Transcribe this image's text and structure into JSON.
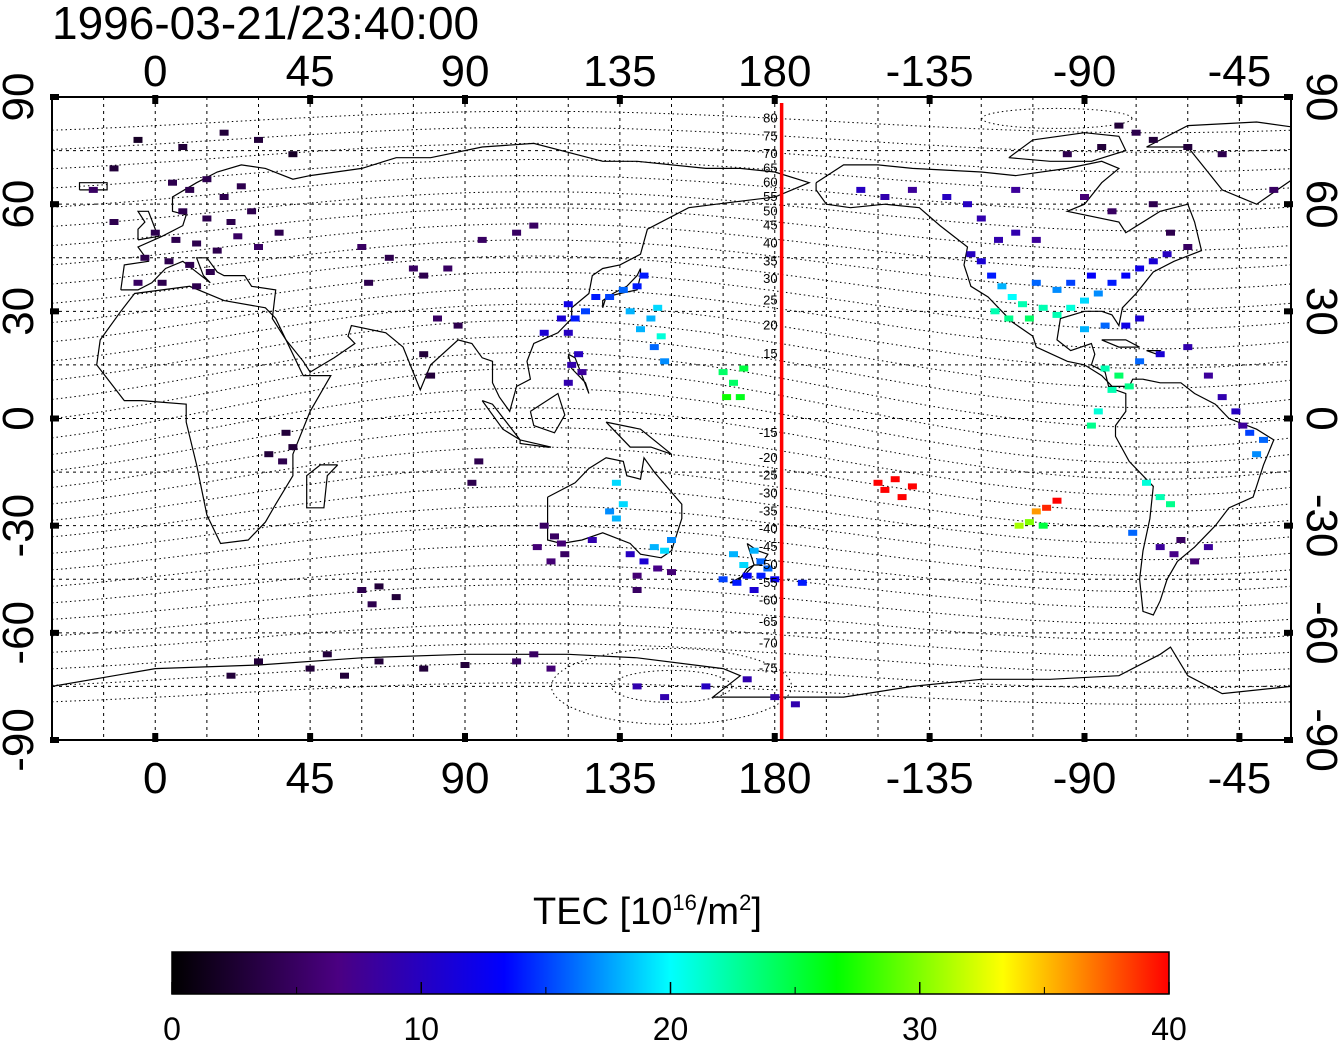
{
  "title": "1996-03-21/23:40:00",
  "map": {
    "lon_range": [
      -30,
      330
    ],
    "lat_range": [
      -90,
      90
    ],
    "lon_ticks": [
      0,
      45,
      90,
      135,
      180,
      225,
      270,
      315
    ],
    "lon_tick_labels": [
      "0",
      "45",
      "90",
      "135",
      "180",
      "-135",
      "-90",
      "-45"
    ],
    "lat_ticks": [
      90,
      60,
      30,
      0,
      -30,
      -60,
      -90
    ],
    "lat_tick_labels": [
      "90",
      "60",
      "30",
      "0",
      "-30",
      "-60",
      "-90"
    ],
    "grid": true,
    "terminator_lon": 182,
    "terminator_color": "#ff0000",
    "contour_labels": [
      {
        "label": "80",
        "lat": 84
      },
      {
        "label": "75",
        "lat": 79
      },
      {
        "label": "70",
        "lat": 74
      },
      {
        "label": "65",
        "lat": 70
      },
      {
        "label": "60",
        "lat": 66
      },
      {
        "label": "55",
        "lat": 62
      },
      {
        "label": "50",
        "lat": 58
      },
      {
        "label": "45",
        "lat": 54
      },
      {
        "label": "40",
        "lat": 49
      },
      {
        "label": "35",
        "lat": 44
      },
      {
        "label": "30",
        "lat": 39
      },
      {
        "label": "25",
        "lat": 33
      },
      {
        "label": "20",
        "lat": 26
      },
      {
        "label": "15",
        "lat": 18
      },
      {
        "label": "-15",
        "lat": -4
      },
      {
        "label": "-20",
        "lat": -11
      },
      {
        "label": "-25",
        "lat": -16
      },
      {
        "label": "-30",
        "lat": -21
      },
      {
        "label": "-35",
        "lat": -26
      },
      {
        "label": "-40",
        "lat": -31
      },
      {
        "label": "-45",
        "lat": -36
      },
      {
        "label": "-50",
        "lat": -41
      },
      {
        "label": "-55",
        "lat": -46
      },
      {
        "label": "-60",
        "lat": -51
      },
      {
        "label": "-65",
        "lat": -57
      },
      {
        "label": "-70",
        "lat": -63
      },
      {
        "label": "-75",
        "lat": -70
      }
    ]
  },
  "colorbar": {
    "title_main": "TEC  [10",
    "title_exp1": "16",
    "title_mid": "/m",
    "title_exp2": "2",
    "title_end": "]",
    "min": 0,
    "max": 40,
    "ticks": [
      0,
      10,
      20,
      30,
      40
    ],
    "tick_labels": [
      "0",
      "10",
      "20",
      "30",
      "40"
    ],
    "stops": [
      "#000000",
      "#4b0082",
      "#0000ff",
      "#00ffff",
      "#00ff00",
      "#ffff00",
      "#ff0000"
    ]
  },
  "tec_points": [
    {
      "lon": 5,
      "lat": 66,
      "tec": 4
    },
    {
      "lon": 10,
      "lat": 64,
      "tec": 4
    },
    {
      "lon": 15,
      "lat": 67,
      "tec": 4
    },
    {
      "lon": 20,
      "lat": 62,
      "tec": 4
    },
    {
      "lon": 25,
      "lat": 65,
      "tec": 4
    },
    {
      "lon": 8,
      "lat": 58,
      "tec": 4
    },
    {
      "lon": 15,
      "lat": 56,
      "tec": 4
    },
    {
      "lon": 22,
      "lat": 55,
      "tec": 4
    },
    {
      "lon": 28,
      "lat": 58,
      "tec": 4
    },
    {
      "lon": 0,
      "lat": 52,
      "tec": 4
    },
    {
      "lon": 6,
      "lat": 50,
      "tec": 4
    },
    {
      "lon": 12,
      "lat": 49,
      "tec": 4
    },
    {
      "lon": 18,
      "lat": 47,
      "tec": 4
    },
    {
      "lon": 24,
      "lat": 51,
      "tec": 5
    },
    {
      "lon": -3,
      "lat": 45,
      "tec": 4
    },
    {
      "lon": 4,
      "lat": 44,
      "tec": 4
    },
    {
      "lon": 10,
      "lat": 43,
      "tec": 4
    },
    {
      "lon": 16,
      "lat": 41,
      "tec": 4
    },
    {
      "lon": -5,
      "lat": 38,
      "tec": 5
    },
    {
      "lon": 2,
      "lat": 38,
      "tec": 4
    },
    {
      "lon": 12,
      "lat": 37,
      "tec": 4
    },
    {
      "lon": 30,
      "lat": 48,
      "tec": 5
    },
    {
      "lon": 36,
      "lat": 52,
      "tec": 4
    },
    {
      "lon": -12,
      "lat": 55,
      "tec": 4
    },
    {
      "lon": -18,
      "lat": 64,
      "tec": 5
    },
    {
      "lon": 20,
      "lat": 80,
      "tec": 3
    },
    {
      "lon": 30,
      "lat": 78,
      "tec": 3
    },
    {
      "lon": -5,
      "lat": 78,
      "tec": 2
    },
    {
      "lon": 8,
      "lat": 76,
      "tec": 3
    },
    {
      "lon": 40,
      "lat": 74,
      "tec": 2
    },
    {
      "lon": -12,
      "lat": 70,
      "tec": 3
    },
    {
      "lon": 60,
      "lat": 48,
      "tec": 5
    },
    {
      "lon": 68,
      "lat": 45,
      "tec": 4
    },
    {
      "lon": 75,
      "lat": 42,
      "tec": 5
    },
    {
      "lon": 62,
      "lat": 38,
      "tec": 4
    },
    {
      "lon": 78,
      "lat": 40,
      "tec": 4
    },
    {
      "lon": 85,
      "lat": 42,
      "tec": 5
    },
    {
      "lon": 95,
      "lat": 50,
      "tec": 5
    },
    {
      "lon": 105,
      "lat": 52,
      "tec": 5
    },
    {
      "lon": 110,
      "lat": 54,
      "tec": 5
    },
    {
      "lon": 82,
      "lat": 28,
      "tec": 5
    },
    {
      "lon": 88,
      "lat": 26,
      "tec": 4
    },
    {
      "lon": 78,
      "lat": 18,
      "tec": 3
    },
    {
      "lon": 80,
      "lat": 12,
      "tec": 3
    },
    {
      "lon": 38,
      "lat": -4,
      "tec": 3
    },
    {
      "lon": 40,
      "lat": -8,
      "tec": 3
    },
    {
      "lon": 37,
      "lat": -12,
      "tec": 4
    },
    {
      "lon": 33,
      "lat": -10,
      "tec": 3
    },
    {
      "lon": 94,
      "lat": -12,
      "tec": 4
    },
    {
      "lon": 92,
      "lat": -18,
      "tec": 4
    },
    {
      "lon": 60,
      "lat": -48,
      "tec": 4
    },
    {
      "lon": 65,
      "lat": -47,
      "tec": 3
    },
    {
      "lon": 70,
      "lat": -50,
      "tec": 3
    },
    {
      "lon": 63,
      "lat": -52,
      "tec": 4
    },
    {
      "lon": 113,
      "lat": -30,
      "tec": 5
    },
    {
      "lon": 116,
      "lat": -33,
      "tec": 5
    },
    {
      "lon": 118,
      "lat": -35,
      "tec": 6
    },
    {
      "lon": 111,
      "lat": -36,
      "tec": 6
    },
    {
      "lon": 119,
      "lat": -38,
      "tec": 5
    },
    {
      "lon": 115,
      "lat": -40,
      "tec": 6
    },
    {
      "lon": 127,
      "lat": -34,
      "tec": 9
    },
    {
      "lon": 132,
      "lat": -26,
      "tec": 17
    },
    {
      "lon": 134,
      "lat": -28,
      "tec": 18
    },
    {
      "lon": 136,
      "lat": -24,
      "tec": 19
    },
    {
      "lon": 134,
      "lat": -18,
      "tec": 19
    },
    {
      "lon": 138,
      "lat": -38,
      "tec": 10
    },
    {
      "lon": 142,
      "lat": -40,
      "tec": 11
    },
    {
      "lon": 145,
      "lat": -36,
      "tec": 18
    },
    {
      "lon": 148,
      "lat": -37,
      "tec": 19
    },
    {
      "lon": 150,
      "lat": -34,
      "tec": 17
    },
    {
      "lon": 146,
      "lat": -42,
      "tec": 7
    },
    {
      "lon": 150,
      "lat": -43,
      "tec": 6
    },
    {
      "lon": 140,
      "lat": -44,
      "tec": 6
    },
    {
      "lon": 140,
      "lat": -48,
      "tec": 5
    },
    {
      "lon": 168,
      "lat": -38,
      "tec": 18
    },
    {
      "lon": 171,
      "lat": -41,
      "tec": 19
    },
    {
      "lon": 174,
      "lat": -37,
      "tec": 18
    },
    {
      "lon": 176,
      "lat": -40,
      "tec": 16
    },
    {
      "lon": 172,
      "lat": -44,
      "tec": 13
    },
    {
      "lon": 169,
      "lat": -46,
      "tec": 14
    },
    {
      "lon": 165,
      "lat": -45,
      "tec": 15
    },
    {
      "lon": 176,
      "lat": -44,
      "tec": 14
    },
    {
      "lon": 178,
      "lat": -42,
      "tec": 16
    },
    {
      "lon": 180,
      "lat": -45,
      "tec": 13
    },
    {
      "lon": 174,
      "lat": -48,
      "tec": 11
    },
    {
      "lon": 188,
      "lat": -46,
      "tec": 14
    },
    {
      "lon": 120,
      "lat": 24,
      "tec": 10
    },
    {
      "lon": 122,
      "lat": 28,
      "tec": 14
    },
    {
      "lon": 125,
      "lat": 30,
      "tec": 15
    },
    {
      "lon": 128,
      "lat": 34,
      "tec": 14
    },
    {
      "lon": 132,
      "lat": 34,
      "tec": 15
    },
    {
      "lon": 136,
      "lat": 36,
      "tec": 16
    },
    {
      "lon": 140,
      "lat": 37,
      "tec": 14
    },
    {
      "lon": 142,
      "lat": 40,
      "tec": 14
    },
    {
      "lon": 138,
      "lat": 30,
      "tec": 18
    },
    {
      "lon": 144,
      "lat": 28,
      "tec": 18
    },
    {
      "lon": 146,
      "lat": 31,
      "tec": 19
    },
    {
      "lon": 141,
      "lat": 25,
      "tec": 18
    },
    {
      "lon": 147,
      "lat": 23,
      "tec": 21
    },
    {
      "lon": 148,
      "lat": 16,
      "tec": 17
    },
    {
      "lon": 145,
      "lat": 20,
      "tec": 16
    },
    {
      "lon": 120,
      "lat": 32,
      "tec": 12
    },
    {
      "lon": 118,
      "lat": 28,
      "tec": 11
    },
    {
      "lon": 121,
      "lat": 15,
      "tec": 9
    },
    {
      "lon": 124,
      "lat": 13,
      "tec": 8
    },
    {
      "lon": 123,
      "lat": 18,
      "tec": 10
    },
    {
      "lon": 120,
      "lat": 10,
      "tec": 9
    },
    {
      "lon": 113,
      "lat": 24,
      "tec": 11
    },
    {
      "lon": 165,
      "lat": 13,
      "tec": 24
    },
    {
      "lon": 168,
      "lat": 10,
      "tec": 24
    },
    {
      "lon": 170,
      "lat": 6,
      "tec": 26
    },
    {
      "lon": 166,
      "lat": 6,
      "tec": 27
    },
    {
      "lon": 171,
      "lat": 14,
      "tec": 25
    },
    {
      "lon": 210,
      "lat": -18,
      "tec": 40
    },
    {
      "lon": 212,
      "lat": -20,
      "tec": 40
    },
    {
      "lon": 215,
      "lat": -17,
      "tec": 40
    },
    {
      "lon": 217,
      "lat": -22,
      "tec": 40
    },
    {
      "lon": 220,
      "lat": -19,
      "tec": 40
    },
    {
      "lon": 256,
      "lat": -26,
      "tec": 36
    },
    {
      "lon": 259,
      "lat": -25,
      "tec": 39
    },
    {
      "lon": 262,
      "lat": -23,
      "tec": 40
    },
    {
      "lon": 254,
      "lat": -29,
      "tec": 30
    },
    {
      "lon": 258,
      "lat": -30,
      "tec": 25
    },
    {
      "lon": 251,
      "lat": -30,
      "tec": 31
    },
    {
      "lon": 237,
      "lat": 46,
      "tec": 10
    },
    {
      "lon": 240,
      "lat": 44,
      "tec": 11
    },
    {
      "lon": 243,
      "lat": 40,
      "tec": 14
    },
    {
      "lon": 246,
      "lat": 37,
      "tec": 18
    },
    {
      "lon": 249,
      "lat": 34,
      "tec": 20
    },
    {
      "lon": 252,
      "lat": 32,
      "tec": 22
    },
    {
      "lon": 244,
      "lat": 30,
      "tec": 22
    },
    {
      "lon": 248,
      "lat": 28,
      "tec": 23
    },
    {
      "lon": 254,
      "lat": 28,
      "tec": 24
    },
    {
      "lon": 258,
      "lat": 31,
      "tec": 22
    },
    {
      "lon": 262,
      "lat": 29,
      "tec": 22
    },
    {
      "lon": 266,
      "lat": 31,
      "tec": 21
    },
    {
      "lon": 270,
      "lat": 33,
      "tec": 19
    },
    {
      "lon": 274,
      "lat": 35,
      "tec": 17
    },
    {
      "lon": 278,
      "lat": 38,
      "tec": 14
    },
    {
      "lon": 282,
      "lat": 40,
      "tec": 13
    },
    {
      "lon": 286,
      "lat": 42,
      "tec": 12
    },
    {
      "lon": 290,
      "lat": 44,
      "tec": 11
    },
    {
      "lon": 294,
      "lat": 46,
      "tec": 10
    },
    {
      "lon": 256,
      "lat": 38,
      "tec": 16
    },
    {
      "lon": 262,
      "lat": 36,
      "tec": 17
    },
    {
      "lon": 266,
      "lat": 38,
      "tec": 15
    },
    {
      "lon": 272,
      "lat": 40,
      "tec": 13
    },
    {
      "lon": 245,
      "lat": 50,
      "tec": 9
    },
    {
      "lon": 250,
      "lat": 52,
      "tec": 9
    },
    {
      "lon": 256,
      "lat": 50,
      "tec": 8
    },
    {
      "lon": 240,
      "lat": 56,
      "tec": 9
    },
    {
      "lon": 236,
      "lat": 60,
      "tec": 10
    },
    {
      "lon": 230,
      "lat": 62,
      "tec": 10
    },
    {
      "lon": 212,
      "lat": 62,
      "tec": 9
    },
    {
      "lon": 205,
      "lat": 64,
      "tec": 10
    },
    {
      "lon": 220,
      "lat": 64,
      "tec": 8
    },
    {
      "lon": 250,
      "lat": 64,
      "tec": 8
    },
    {
      "lon": 270,
      "lat": 62,
      "tec": 6
    },
    {
      "lon": 278,
      "lat": 58,
      "tec": 5
    },
    {
      "lon": 290,
      "lat": 60,
      "tec": 4
    },
    {
      "lon": 295,
      "lat": 52,
      "tec": 4
    },
    {
      "lon": 300,
      "lat": 48,
      "tec": 5
    },
    {
      "lon": 270,
      "lat": 25,
      "tec": 18
    },
    {
      "lon": 276,
      "lat": 26,
      "tec": 16
    },
    {
      "lon": 282,
      "lat": 26,
      "tec": 12
    },
    {
      "lon": 286,
      "lat": 28,
      "tec": 11
    },
    {
      "lon": 276,
      "lat": 14,
      "tec": 22
    },
    {
      "lon": 280,
      "lat": 12,
      "tec": 24
    },
    {
      "lon": 283,
      "lat": 9,
      "tec": 23
    },
    {
      "lon": 278,
      "lat": 8,
      "tec": 22
    },
    {
      "lon": 274,
      "lat": 2,
      "tec": 21
    },
    {
      "lon": 272,
      "lat": -2,
      "tec": 23
    },
    {
      "lon": 286,
      "lat": 16,
      "tec": 16
    },
    {
      "lon": 292,
      "lat": 18,
      "tec": 11
    },
    {
      "lon": 300,
      "lat": 20,
      "tec": 9
    },
    {
      "lon": 306,
      "lat": 12,
      "tec": 8
    },
    {
      "lon": 310,
      "lat": 6,
      "tec": 9
    },
    {
      "lon": 314,
      "lat": 2,
      "tec": 10
    },
    {
      "lon": 318,
      "lat": -4,
      "tec": 15
    },
    {
      "lon": 322,
      "lat": -6,
      "tec": 16
    },
    {
      "lon": 320,
      "lat": -10,
      "tec": 17
    },
    {
      "lon": 316,
      "lat": -2,
      "tec": 8
    },
    {
      "lon": 288,
      "lat": -18,
      "tec": 21
    },
    {
      "lon": 292,
      "lat": -22,
      "tec": 22
    },
    {
      "lon": 295,
      "lat": -24,
      "tec": 23
    },
    {
      "lon": 284,
      "lat": -32,
      "tec": 16
    },
    {
      "lon": 292,
      "lat": -36,
      "tec": 8
    },
    {
      "lon": 296,
      "lat": -38,
      "tec": 7
    },
    {
      "lon": 302,
      "lat": -40,
      "tec": 6
    },
    {
      "lon": 306,
      "lat": -36,
      "tec": 8
    },
    {
      "lon": 298,
      "lat": -34,
      "tec": 5
    },
    {
      "lon": 285,
      "lat": 80,
      "tec": 4
    },
    {
      "lon": 290,
      "lat": 78,
      "tec": 3
    },
    {
      "lon": 275,
      "lat": 76,
      "tec": 3
    },
    {
      "lon": 300,
      "lat": 76,
      "tec": 3
    },
    {
      "lon": 265,
      "lat": 74,
      "tec": 4
    },
    {
      "lon": 310,
      "lat": 74,
      "tec": 4
    },
    {
      "lon": 280,
      "lat": 82,
      "tec": 3
    },
    {
      "lon": 325,
      "lat": 64,
      "tec": 5
    },
    {
      "lon": 110,
      "lat": -66,
      "tec": 5
    },
    {
      "lon": 115,
      "lat": -70,
      "tec": 6
    },
    {
      "lon": 105,
      "lat": -68,
      "tec": 5
    },
    {
      "lon": 30,
      "lat": -68,
      "tec": 3
    },
    {
      "lon": 22,
      "lat": -72,
      "tec": 3
    },
    {
      "lon": 45,
      "lat": -70,
      "tec": 3
    },
    {
      "lon": 55,
      "lat": -72,
      "tec": 3
    },
    {
      "lon": 65,
      "lat": -68,
      "tec": 3
    },
    {
      "lon": 78,
      "lat": -70,
      "tec": 3
    },
    {
      "lon": 90,
      "lat": -69,
      "tec": 3
    },
    {
      "lon": 50,
      "lat": -66,
      "tec": 3
    },
    {
      "lon": 140,
      "lat": -75,
      "tec": 9
    },
    {
      "lon": 148,
      "lat": -78,
      "tec": 9
    },
    {
      "lon": 160,
      "lat": -75,
      "tec": 10
    },
    {
      "lon": 172,
      "lat": -73,
      "tec": 9
    },
    {
      "lon": 180,
      "lat": -78,
      "tec": 9
    },
    {
      "lon": 186,
      "lat": -80,
      "tec": 9
    }
  ]
}
